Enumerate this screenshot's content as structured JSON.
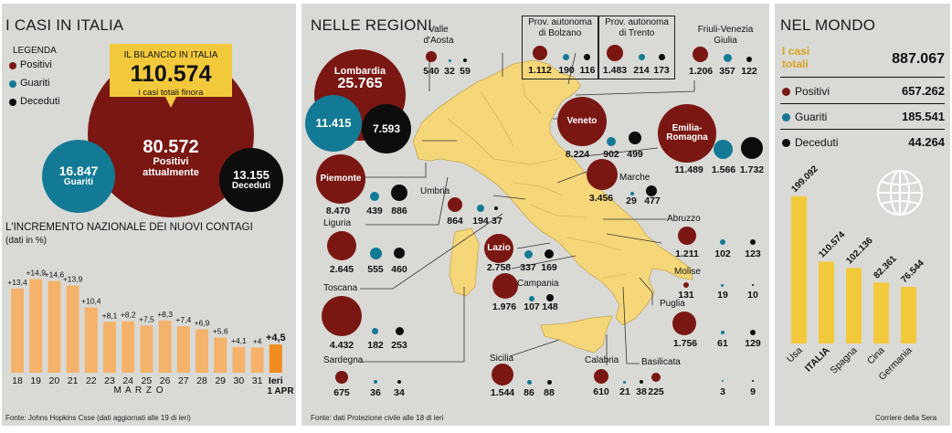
{
  "left": {
    "title": "I CASI IN ITALIA",
    "legend": {
      "title": "LEGENDA",
      "positivi": "Positivi",
      "guariti": "Guariti",
      "deceduti": "Deceduti",
      "colors": {
        "positivi": "#7a1712",
        "guariti": "#137a95",
        "deceduti": "#0d0d0d"
      }
    },
    "bilancio": {
      "label": "IL BILANCIO IN ITALIA",
      "value": "110.574",
      "sub": "i casi totali finora",
      "color": "#f3c93c"
    },
    "positivi": {
      "value": "80.572",
      "label_1": "Positivi",
      "label_2": "attualmente"
    },
    "guariti": {
      "value": "16.847",
      "label": "Guariti"
    },
    "deceduti": {
      "value": "13.155",
      "label": "Deceduti"
    },
    "chart_title": "L'INCREMENTO NAZIONALE DEI NUOVI CONTAGI",
    "chart_subtitle": "(dati in %)",
    "month": "M A R Z O",
    "last_label_1": "Ieri",
    "last_label_2": "1 APR",
    "source": "Fonte: Johns Hopkins Csse (dati aggiornati alle 19 di ieri)"
  },
  "chart_data": [
    {
      "type": "bar",
      "title": "L'INCREMENTO NAZIONALE DEI NUOVI CONTAGI",
      "subtitle": "(dati in %)",
      "categories": [
        "18",
        "19",
        "20",
        "21",
        "22",
        "23",
        "24",
        "25",
        "26",
        "27",
        "28",
        "29",
        "30",
        "31",
        "Ieri"
      ],
      "values": [
        13.4,
        14.9,
        14.6,
        13.9,
        10.4,
        8.1,
        8.2,
        7.5,
        8.3,
        7.4,
        6.9,
        5.6,
        4.1,
        4.0,
        4.5
      ],
      "labels": [
        "+13,4",
        "+14,9",
        "+14,6",
        "+13,9",
        "+10,4",
        "+8,1",
        "+8,2",
        "+7,5",
        "+8,3",
        "+7,4",
        "+6,9",
        "+5,6",
        "+4,1",
        "+4",
        "+4,5"
      ],
      "xlabel": "M A R Z O",
      "ylim": [
        0,
        16
      ],
      "colors": {
        "bar": "#f5b26b",
        "last": "#ef8d1e"
      }
    },
    {
      "type": "bar",
      "title": "NEL MONDO",
      "categories": [
        "Usa",
        "ITALIA",
        "Spagna",
        "Cina",
        "Germania"
      ],
      "values": [
        199092,
        110574,
        102136,
        82361,
        76544
      ],
      "labels": [
        "199.092",
        "110.574",
        "102.136",
        "82.361",
        "76.544"
      ],
      "ylim": [
        0,
        210000
      ],
      "colors": {
        "bar": "#f3c93c"
      }
    }
  ],
  "regions_panel": {
    "title": "NELLE REGIONI",
    "source": "Fonte: dati Protezione civile alle 18 di ieri",
    "map_color": "#f5d77a",
    "regions": [
      {
        "id": "lombardia",
        "name": "Lombardia",
        "p": "25.765",
        "g": "11.415",
        "d": "7.593"
      },
      {
        "id": "piemonte",
        "name": "Piemonte",
        "p": "8.470",
        "g": "439",
        "d": "886"
      },
      {
        "id": "valle",
        "name_1": "Valle",
        "name_2": "d'Aosta",
        "p": "540",
        "g": "32",
        "d": "59"
      },
      {
        "id": "bolzano",
        "name_1": "Prov. autonoma",
        "name_2": "di Bolzano",
        "p": "1.112",
        "g": "190",
        "d": "116"
      },
      {
        "id": "trento",
        "name_1": "Prov. autonoma",
        "name_2": "di Trento",
        "p": "1.483",
        "g": "214",
        "d": "173"
      },
      {
        "id": "friuli",
        "name_1": "Friuli-Venezia",
        "name_2": "Giulia",
        "p": "1.206",
        "g": "357",
        "d": "122"
      },
      {
        "id": "veneto",
        "name": "Veneto",
        "p": "8.224",
        "g": "902",
        "d": "499"
      },
      {
        "id": "emilia",
        "name_1": "Emilia-",
        "name_2": "Romagna",
        "p": "11.489",
        "g": "1.566",
        "d": "1.732"
      },
      {
        "id": "liguria",
        "name": "Liguria",
        "p": "2.645",
        "g": "555",
        "d": "460"
      },
      {
        "id": "toscana",
        "name": "Toscana",
        "p": "4.432",
        "g": "182",
        "d": "253"
      },
      {
        "id": "sardegna",
        "name": "Sardegna",
        "p": "675",
        "g": "36",
        "d": "34"
      },
      {
        "id": "umbria",
        "name": "Umbria",
        "p": "864",
        "g": "194",
        "d": "37"
      },
      {
        "id": "marche",
        "name": "Marche",
        "p": "3.456",
        "g": "29",
        "d": "477"
      },
      {
        "id": "lazio",
        "name": "Lazio",
        "p": "2.758",
        "g": "337",
        "d": "169"
      },
      {
        "id": "abruzzo",
        "name": "Abruzzo",
        "p": "1.211",
        "g": "102",
        "d": "123"
      },
      {
        "id": "molise",
        "name": "Molise",
        "p": "131",
        "g": "19",
        "d": "10"
      },
      {
        "id": "campania",
        "name": "Campania",
        "p": "1.976",
        "g": "107",
        "d": "148"
      },
      {
        "id": "puglia",
        "name": "Puglia",
        "p": "1.756",
        "g": "61",
        "d": "129"
      },
      {
        "id": "basilicata",
        "name": "Basilicata",
        "p": "225",
        "g": "3",
        "d": "9"
      },
      {
        "id": "calabria",
        "name": "Calabria",
        "p": "610",
        "g": "21",
        "d": "38"
      },
      {
        "id": "sicilia",
        "name": "Sicilia",
        "p": "1.544",
        "g": "86",
        "d": "88"
      }
    ]
  },
  "right": {
    "title": "NEL MONDO",
    "casi_label_1": "I casi",
    "casi_label_2": "totali",
    "casi_value": "887.067",
    "positivi_label": "Positivi",
    "positivi_value": "657.262",
    "guariti_label": "Guariti",
    "guariti_value": "185.541",
    "deceduti_label": "Deceduti",
    "deceduti_value": "44.264",
    "globe_icon": "globe-icon",
    "credit": "Corriere della Sera"
  }
}
